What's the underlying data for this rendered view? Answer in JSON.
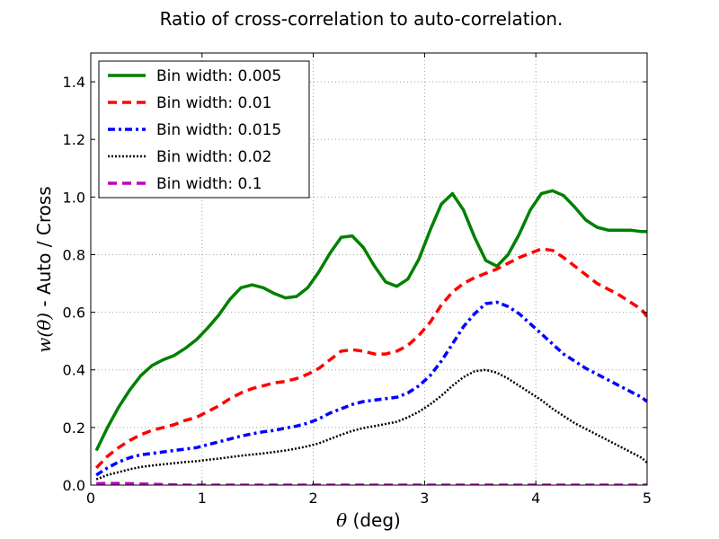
{
  "chart_data": {
    "type": "line",
    "title": "Ratio of cross-correlation to auto-correlation.",
    "xlabel_symbol": "θ",
    "xlabel_unit": " (deg)",
    "ylabel_symbol": "w(θ)",
    "ylabel_rest": " - Auto / Cross",
    "xlim": [
      0,
      5
    ],
    "ylim": [
      0,
      1.5
    ],
    "xticks": [
      0,
      1,
      2,
      3,
      4,
      5
    ],
    "xtick_labels": [
      "0",
      "1",
      "2",
      "3",
      "4",
      "5"
    ],
    "yticks": [
      0.0,
      0.2,
      0.4,
      0.6,
      0.8,
      1.0,
      1.2,
      1.4
    ],
    "ytick_labels": [
      "0.0",
      "0.2",
      "0.4",
      "0.6",
      "0.8",
      "1.0",
      "1.2",
      "1.4"
    ],
    "grid": true,
    "legend_position": "top-left",
    "series": [
      {
        "name": "Bin width: 0.005",
        "color": "#008000",
        "style": "solid",
        "x": [
          0.05,
          0.15,
          0.25,
          0.35,
          0.45,
          0.55,
          0.65,
          0.75,
          0.85,
          0.95,
          1.05,
          1.15,
          1.25,
          1.35,
          1.45,
          1.55,
          1.65,
          1.75,
          1.85,
          1.95,
          2.05,
          2.15,
          2.25,
          2.35,
          2.45,
          2.55,
          2.65,
          2.75,
          2.85,
          2.95,
          3.05,
          3.15,
          3.25,
          3.35,
          3.45,
          3.55,
          3.65,
          3.75,
          3.85,
          3.95,
          4.05,
          4.15,
          4.25,
          4.35,
          4.45,
          4.55,
          4.65,
          4.75,
          4.85,
          4.95,
          5.0
        ],
        "y": [
          0.12,
          0.2,
          0.27,
          0.33,
          0.38,
          0.415,
          0.435,
          0.45,
          0.475,
          0.505,
          0.545,
          0.59,
          0.645,
          0.685,
          0.695,
          0.685,
          0.665,
          0.65,
          0.655,
          0.685,
          0.74,
          0.805,
          0.86,
          0.865,
          0.825,
          0.76,
          0.705,
          0.69,
          0.715,
          0.785,
          0.885,
          0.975,
          1.012,
          0.955,
          0.86,
          0.78,
          0.76,
          0.8,
          0.87,
          0.955,
          1.012,
          1.022,
          1.005,
          0.965,
          0.92,
          0.895,
          0.885,
          0.885,
          0.885,
          0.88,
          0.88
        ]
      },
      {
        "name": "Bin width: 0.01",
        "color": "#ff0000",
        "style": "dashed",
        "x": [
          0.05,
          0.15,
          0.25,
          0.35,
          0.45,
          0.55,
          0.65,
          0.75,
          0.85,
          0.95,
          1.05,
          1.15,
          1.25,
          1.35,
          1.45,
          1.55,
          1.65,
          1.75,
          1.85,
          1.95,
          2.05,
          2.15,
          2.25,
          2.35,
          2.45,
          2.55,
          2.65,
          2.75,
          2.85,
          2.95,
          3.05,
          3.15,
          3.25,
          3.35,
          3.45,
          3.55,
          3.65,
          3.75,
          3.85,
          3.95,
          4.05,
          4.15,
          4.25,
          4.35,
          4.45,
          4.55,
          4.65,
          4.75,
          4.85,
          4.95,
          5.0
        ],
        "y": [
          0.06,
          0.1,
          0.13,
          0.155,
          0.175,
          0.19,
          0.2,
          0.21,
          0.225,
          0.235,
          0.255,
          0.275,
          0.3,
          0.32,
          0.335,
          0.345,
          0.355,
          0.36,
          0.37,
          0.385,
          0.405,
          0.435,
          0.465,
          0.47,
          0.465,
          0.455,
          0.455,
          0.465,
          0.485,
          0.52,
          0.565,
          0.625,
          0.67,
          0.7,
          0.72,
          0.735,
          0.75,
          0.77,
          0.79,
          0.805,
          0.82,
          0.815,
          0.79,
          0.76,
          0.73,
          0.7,
          0.68,
          0.66,
          0.635,
          0.61,
          0.585
        ]
      },
      {
        "name": "Bin width: 0.015",
        "color": "#0000ff",
        "style": "dashdot",
        "x": [
          0.05,
          0.15,
          0.25,
          0.35,
          0.45,
          0.55,
          0.65,
          0.75,
          0.85,
          0.95,
          1.05,
          1.15,
          1.25,
          1.35,
          1.45,
          1.55,
          1.65,
          1.75,
          1.85,
          1.95,
          2.05,
          2.15,
          2.25,
          2.35,
          2.45,
          2.55,
          2.65,
          2.75,
          2.85,
          2.95,
          3.05,
          3.15,
          3.25,
          3.35,
          3.45,
          3.55,
          3.65,
          3.75,
          3.85,
          3.95,
          4.05,
          4.15,
          4.25,
          4.35,
          4.45,
          4.55,
          4.65,
          4.75,
          4.85,
          4.95,
          5.0
        ],
        "y": [
          0.035,
          0.06,
          0.08,
          0.095,
          0.105,
          0.11,
          0.115,
          0.12,
          0.125,
          0.13,
          0.14,
          0.15,
          0.16,
          0.17,
          0.178,
          0.185,
          0.19,
          0.198,
          0.205,
          0.215,
          0.23,
          0.25,
          0.265,
          0.28,
          0.29,
          0.295,
          0.3,
          0.305,
          0.32,
          0.345,
          0.38,
          0.43,
          0.49,
          0.55,
          0.595,
          0.63,
          0.635,
          0.62,
          0.595,
          0.56,
          0.525,
          0.49,
          0.455,
          0.43,
          0.405,
          0.385,
          0.365,
          0.345,
          0.325,
          0.305,
          0.29
        ]
      },
      {
        "name": "Bin width: 0.02",
        "color": "#000000",
        "style": "dotted",
        "x": [
          0.05,
          0.15,
          0.25,
          0.35,
          0.45,
          0.55,
          0.65,
          0.75,
          0.85,
          0.95,
          1.05,
          1.15,
          1.25,
          1.35,
          1.45,
          1.55,
          1.65,
          1.75,
          1.85,
          1.95,
          2.05,
          2.15,
          2.25,
          2.35,
          2.45,
          2.55,
          2.65,
          2.75,
          2.85,
          2.95,
          3.05,
          3.15,
          3.25,
          3.35,
          3.45,
          3.55,
          3.65,
          3.75,
          3.85,
          3.95,
          4.05,
          4.15,
          4.25,
          4.35,
          4.45,
          4.55,
          4.65,
          4.75,
          4.85,
          4.95,
          5.0
        ],
        "y": [
          0.02,
          0.035,
          0.045,
          0.055,
          0.063,
          0.068,
          0.072,
          0.076,
          0.08,
          0.083,
          0.088,
          0.092,
          0.097,
          0.102,
          0.106,
          0.11,
          0.115,
          0.12,
          0.127,
          0.135,
          0.145,
          0.16,
          0.175,
          0.188,
          0.198,
          0.205,
          0.212,
          0.22,
          0.235,
          0.255,
          0.28,
          0.31,
          0.345,
          0.375,
          0.395,
          0.4,
          0.39,
          0.37,
          0.345,
          0.32,
          0.295,
          0.265,
          0.24,
          0.215,
          0.195,
          0.175,
          0.155,
          0.135,
          0.115,
          0.095,
          0.078
        ]
      },
      {
        "name": "Bin width: 0.1",
        "color": "#bf00bf",
        "style": "dashed",
        "x": [
          0.05,
          0.15,
          0.25,
          0.35,
          0.45,
          0.55,
          0.65,
          0.75,
          0.85,
          0.95,
          1.05,
          1.15,
          1.25,
          1.35,
          1.45,
          1.55,
          1.65,
          1.75,
          1.85,
          1.95,
          2.05,
          2.15,
          2.25,
          2.35,
          2.45,
          2.55,
          2.65,
          2.75,
          2.85,
          2.95,
          3.05,
          3.15,
          3.25,
          3.35,
          3.45,
          3.55,
          3.65,
          3.75,
          3.85,
          3.95,
          4.05,
          4.15,
          4.25,
          4.35,
          4.45,
          4.55,
          4.65,
          4.75,
          4.85,
          4.95,
          5.0
        ],
        "y": [
          0.005,
          0.006,
          0.006,
          0.005,
          0.004,
          0.003,
          0.002,
          0.001,
          0.0,
          0.0,
          0.0,
          0.0,
          0.0,
          0.0,
          0.0,
          0.0,
          0.0,
          0.0,
          0.0,
          0.0,
          0.0,
          0.0,
          0.0,
          0.0,
          0.0,
          0.0,
          0.0,
          0.0,
          0.0,
          0.0,
          0.0,
          0.0,
          0.0,
          0.0,
          0.0,
          0.0,
          0.0,
          0.0,
          0.0,
          0.0,
          0.0,
          0.0,
          0.0,
          0.0,
          0.0,
          0.0,
          0.0,
          0.0,
          0.0,
          0.0,
          0.0
        ]
      }
    ]
  }
}
